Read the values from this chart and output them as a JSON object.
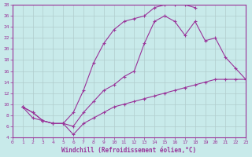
{
  "background_color": "#c8eaea",
  "grid_color": "#b0cccc",
  "line_color": "#993399",
  "marker_color": "#993399",
  "xlabel": "Windchill (Refroidissement éolien,°C)",
  "xlim": [
    0,
    23
  ],
  "ylim": [
    4,
    28
  ],
  "xticks": [
    0,
    1,
    2,
    3,
    4,
    5,
    6,
    7,
    8,
    9,
    10,
    11,
    12,
    13,
    14,
    15,
    16,
    17,
    18,
    19,
    20,
    21,
    22,
    23
  ],
  "yticks": [
    4,
    6,
    8,
    10,
    12,
    14,
    16,
    18,
    20,
    22,
    24,
    26,
    28
  ],
  "curve_upper_x": [
    1,
    2,
    3,
    4,
    5,
    6,
    7,
    8,
    9,
    10,
    11,
    12,
    13,
    14,
    15,
    16,
    17,
    18
  ],
  "curve_upper_y": [
    9.5,
    8.5,
    7,
    6.5,
    6.5,
    8.5,
    12.5,
    17.5,
    21.0,
    23.5,
    25.0,
    25.5,
    26.0,
    27.5,
    28.0,
    28.0,
    28.0,
    27.5
  ],
  "curve_mid_x": [
    1,
    2,
    3,
    4,
    5,
    6,
    7,
    8,
    9,
    10,
    11,
    12,
    13,
    14,
    15,
    16,
    17,
    18,
    19,
    20,
    21,
    22,
    23
  ],
  "curve_mid_y": [
    9.5,
    8.5,
    7,
    6.5,
    6.5,
    6.0,
    8.5,
    10.5,
    12.5,
    13.5,
    15.0,
    16.0,
    21.0,
    25.0,
    26.0,
    25.0,
    22.5,
    25.0,
    21.5,
    22.0,
    18.5,
    16.5,
    14.5
  ],
  "curve_lower_x": [
    1,
    2,
    3,
    4,
    5,
    6,
    7,
    8,
    9,
    10,
    11,
    12,
    13,
    14,
    15,
    16,
    17,
    18,
    19,
    20,
    21,
    22,
    23
  ],
  "curve_lower_y": [
    9.5,
    7.5,
    7,
    6.5,
    6.5,
    4.5,
    6.5,
    7.5,
    8.5,
    9.5,
    10.0,
    10.5,
    11.0,
    11.5,
    12.0,
    12.5,
    13.0,
    13.5,
    14.0,
    14.5,
    14.5,
    14.5,
    14.5
  ]
}
